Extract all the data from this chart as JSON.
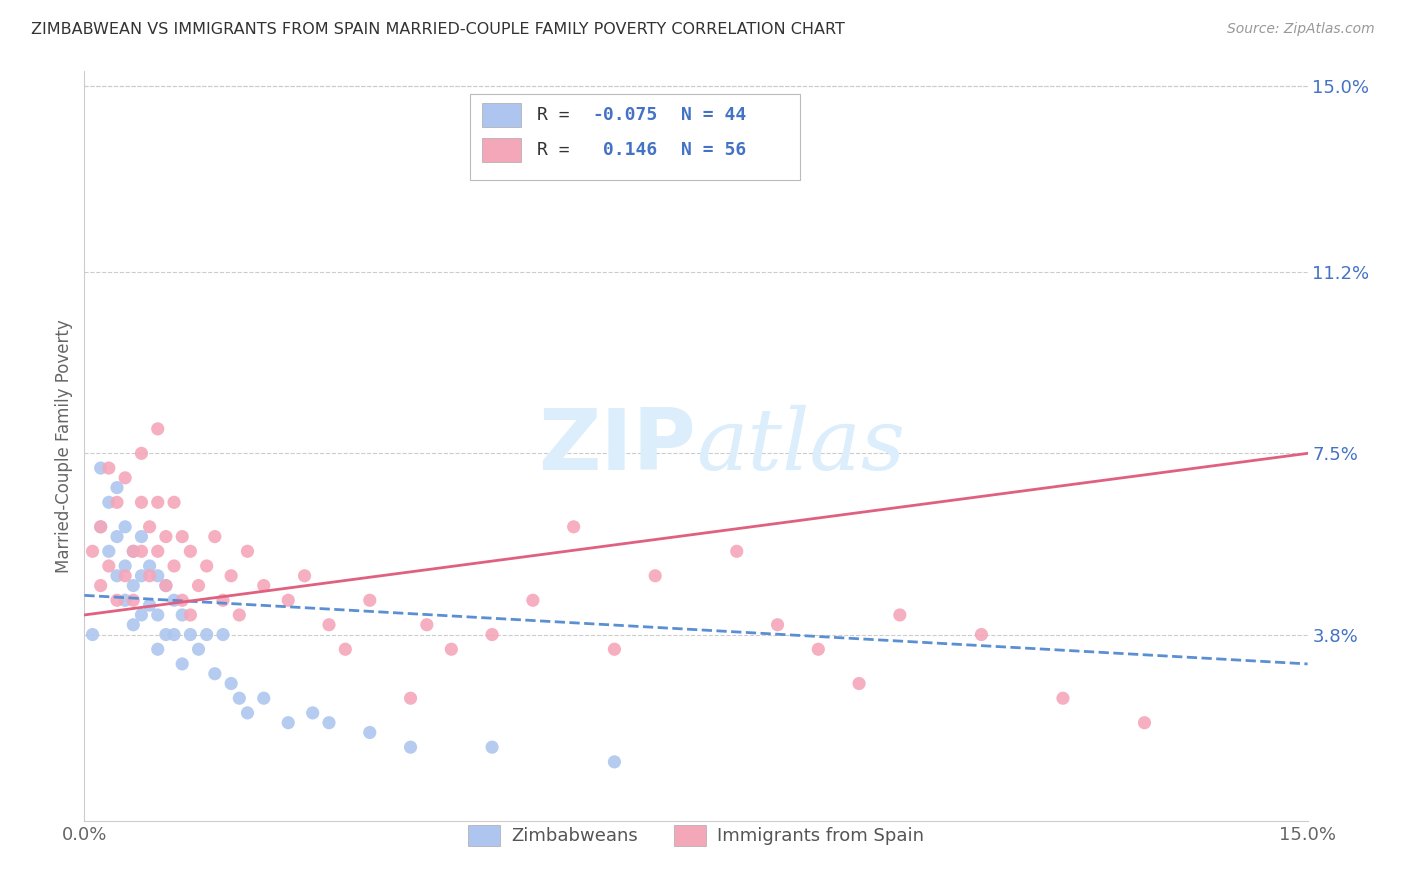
{
  "title": "ZIMBABWEAN VS IMMIGRANTS FROM SPAIN MARRIED-COUPLE FAMILY POVERTY CORRELATION CHART",
  "source": "Source: ZipAtlas.com",
  "ylabel": "Married-Couple Family Poverty",
  "x_min": 0.0,
  "x_max": 0.15,
  "y_min": 0.0,
  "y_max": 0.15,
  "y_tick_labels_right": [
    "15.0%",
    "11.2%",
    "7.5%",
    "3.8%"
  ],
  "y_tick_vals_right": [
    0.15,
    0.112,
    0.075,
    0.038
  ],
  "grid_color": "#cccccc",
  "background_color": "#ffffff",
  "zimbabwean_color": "#aec6ef",
  "spain_color": "#f4a7b9",
  "zimbabwean_line_color": "#5b8fd4",
  "spain_line_color": "#e06080",
  "R_zimbabwean": -0.075,
  "N_zimbabwean": 44,
  "R_spain": 0.146,
  "N_spain": 56,
  "legend_box_color_zimbabwean": "#aec6ef",
  "legend_box_color_spain": "#f4a7b9",
  "watermark_color": "#dceefb",
  "zimbabwean_x": [
    0.001,
    0.002,
    0.002,
    0.003,
    0.003,
    0.004,
    0.004,
    0.004,
    0.005,
    0.005,
    0.005,
    0.006,
    0.006,
    0.006,
    0.007,
    0.007,
    0.007,
    0.008,
    0.008,
    0.009,
    0.009,
    0.009,
    0.01,
    0.01,
    0.011,
    0.011,
    0.012,
    0.012,
    0.013,
    0.014,
    0.015,
    0.016,
    0.017,
    0.018,
    0.019,
    0.02,
    0.022,
    0.025,
    0.028,
    0.03,
    0.035,
    0.04,
    0.05,
    0.065
  ],
  "zimbabwean_y": [
    0.038,
    0.072,
    0.06,
    0.065,
    0.055,
    0.068,
    0.058,
    0.05,
    0.06,
    0.052,
    0.045,
    0.055,
    0.048,
    0.04,
    0.058,
    0.05,
    0.042,
    0.052,
    0.044,
    0.05,
    0.042,
    0.035,
    0.048,
    0.038,
    0.045,
    0.038,
    0.042,
    0.032,
    0.038,
    0.035,
    0.038,
    0.03,
    0.038,
    0.028,
    0.025,
    0.022,
    0.025,
    0.02,
    0.022,
    0.02,
    0.018,
    0.015,
    0.015,
    0.012
  ],
  "spain_x": [
    0.001,
    0.002,
    0.002,
    0.003,
    0.003,
    0.004,
    0.004,
    0.005,
    0.005,
    0.006,
    0.006,
    0.007,
    0.007,
    0.007,
    0.008,
    0.008,
    0.009,
    0.009,
    0.009,
    0.01,
    0.01,
    0.011,
    0.011,
    0.012,
    0.012,
    0.013,
    0.013,
    0.014,
    0.015,
    0.016,
    0.017,
    0.018,
    0.019,
    0.02,
    0.022,
    0.025,
    0.027,
    0.03,
    0.032,
    0.035,
    0.04,
    0.042,
    0.045,
    0.05,
    0.055,
    0.06,
    0.065,
    0.07,
    0.08,
    0.085,
    0.09,
    0.095,
    0.1,
    0.11,
    0.12,
    0.13
  ],
  "spain_y": [
    0.055,
    0.048,
    0.06,
    0.052,
    0.072,
    0.045,
    0.065,
    0.05,
    0.07,
    0.045,
    0.055,
    0.065,
    0.055,
    0.075,
    0.05,
    0.06,
    0.08,
    0.065,
    0.055,
    0.048,
    0.058,
    0.052,
    0.065,
    0.045,
    0.058,
    0.042,
    0.055,
    0.048,
    0.052,
    0.058,
    0.045,
    0.05,
    0.042,
    0.055,
    0.048,
    0.045,
    0.05,
    0.04,
    0.035,
    0.045,
    0.025,
    0.04,
    0.035,
    0.038,
    0.045,
    0.06,
    0.035,
    0.05,
    0.055,
    0.04,
    0.035,
    0.028,
    0.042,
    0.038,
    0.025,
    0.02
  ]
}
